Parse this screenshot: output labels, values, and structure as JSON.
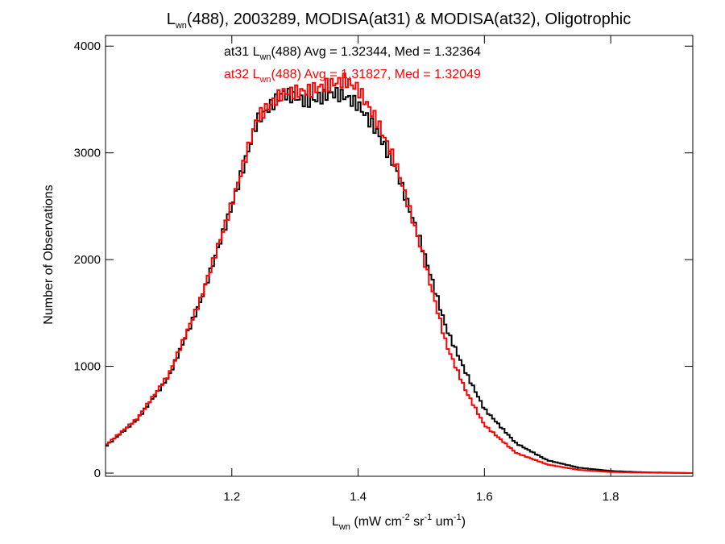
{
  "chart_data": {
    "type": "line",
    "title": {
      "pre": "L",
      "sub": "wn",
      "rest": "(488), 2003289, MODISA(at31) & MODISA(at32), Oligotrophic"
    },
    "xlabel": {
      "pre": "L",
      "sub": "wn",
      "p1": " (mW cm",
      "sup1": "-2",
      "p2": " sr",
      "sup2": "-1",
      "p3": " um",
      "sup3": "-1",
      "p4": ")"
    },
    "ylabel": "Number of Observations",
    "xlim": [
      1.0,
      1.93
    ],
    "ylim": [
      -30,
      4100
    ],
    "x_ticks": [
      1.2,
      1.4,
      1.6,
      1.8
    ],
    "x_tick_labels": [
      "1.2",
      "1.4",
      "1.6",
      "1.8"
    ],
    "y_ticks": [
      0,
      1000,
      2000,
      3000,
      4000
    ],
    "y_tick_labels": [
      "0",
      "1000",
      "2000",
      "3000",
      "4000"
    ],
    "grid": false,
    "legend_position": "top-center",
    "annotations": [
      {
        "series": "at31",
        "color": "#000000",
        "pre": "at31 L",
        "sub": "wn",
        "rest": "(488) Avg = 1.32344, Med = 1.32364"
      },
      {
        "series": "at32",
        "color": "#ff0000",
        "pre": "at32 L",
        "sub": "wn",
        "rest": "(488) Avg = 1.31827, Med = 1.32049"
      }
    ],
    "series": [
      {
        "name": "at31",
        "color": "#000000",
        "x": [
          1.0,
          1.05,
          1.1,
          1.15,
          1.2,
          1.24,
          1.28,
          1.32,
          1.36,
          1.38,
          1.4,
          1.43,
          1.46,
          1.5,
          1.54,
          1.57,
          1.6,
          1.65,
          1.7,
          1.75,
          1.8,
          1.85,
          1.93
        ],
        "y": [
          250,
          500,
          900,
          1600,
          2500,
          3300,
          3560,
          3480,
          3560,
          3530,
          3450,
          3200,
          2850,
          2150,
          1350,
          950,
          600,
          280,
          120,
          50,
          20,
          8,
          0
        ]
      },
      {
        "name": "at32",
        "color": "#ff0000",
        "x": [
          1.0,
          1.05,
          1.1,
          1.15,
          1.2,
          1.24,
          1.28,
          1.32,
          1.36,
          1.38,
          1.4,
          1.43,
          1.46,
          1.5,
          1.54,
          1.57,
          1.6,
          1.65,
          1.7,
          1.75,
          1.8,
          1.85,
          1.93
        ],
        "y": [
          260,
          510,
          920,
          1620,
          2520,
          3330,
          3560,
          3580,
          3650,
          3680,
          3600,
          3300,
          2900,
          2100,
          1200,
          780,
          450,
          190,
          80,
          30,
          10,
          5,
          0
        ]
      }
    ]
  }
}
